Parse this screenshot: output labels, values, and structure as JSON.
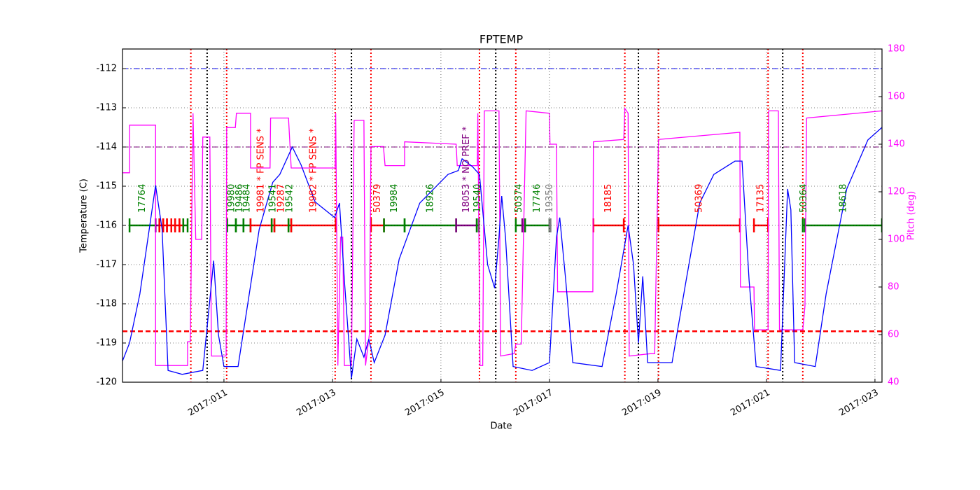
{
  "chart_data": {
    "type": "line",
    "title": "FPTEMP",
    "xlabel": "Date",
    "ylabel": "Temperature (C)",
    "y2label": "Pitch (deg)",
    "y2_color": "#ff00ff",
    "grid": true,
    "xlim": [
      9.13,
      23.13
    ],
    "xticks": [
      {
        "value": 11,
        "label": "2017:011"
      },
      {
        "value": 13,
        "label": "2017:013"
      },
      {
        "value": 15,
        "label": "2017:015"
      },
      {
        "value": 17,
        "label": "2017:017"
      },
      {
        "value": 19,
        "label": "2017:019"
      },
      {
        "value": 21,
        "label": "2017:021"
      },
      {
        "value": 23,
        "label": "2017:023"
      }
    ],
    "ylim": [
      -120,
      -111.5
    ],
    "yticks": [
      -120,
      -119,
      -118,
      -117,
      -116,
      -115,
      -114,
      -113,
      -112
    ],
    "y2lim": [
      40,
      180
    ],
    "y2ticks": [
      40,
      60,
      80,
      100,
      120,
      140,
      160,
      180
    ],
    "series": [
      {
        "color": "#0000ff",
        "x": [
          9.13,
          9.26,
          9.45,
          9.74,
          9.86,
          9.97,
          10.23,
          10.61,
          10.74,
          10.81,
          10.9,
          11.0,
          11.26,
          11.45,
          11.65,
          11.9,
          12.03,
          12.26,
          12.42,
          12.68,
          13.04,
          13.13,
          13.22,
          13.35,
          13.45,
          13.58,
          13.67,
          13.77,
          13.97,
          14.23,
          14.61,
          15.13,
          15.32,
          15.39,
          15.58,
          15.71,
          15.86,
          15.99,
          16.07,
          16.12,
          16.19,
          16.33,
          16.68,
          17.0,
          17.13,
          17.19,
          17.3,
          17.43,
          17.97,
          18.23,
          18.45,
          18.55,
          18.64,
          18.72,
          18.81,
          19.26,
          19.52,
          19.77,
          20.03,
          20.42,
          20.55,
          20.68,
          20.81,
          21.26,
          21.39,
          21.45,
          21.52,
          21.9,
          22.1,
          22.48,
          22.87,
          23.13
        ],
        "values": [
          -119.46,
          -119.0,
          -117.75,
          -114.98,
          -116.1,
          -119.7,
          -119.8,
          -119.7,
          -117.9,
          -116.9,
          -118.8,
          -119.6,
          -119.6,
          -117.9,
          -116.1,
          -114.9,
          -114.7,
          -114.0,
          -114.45,
          -115.4,
          -115.8,
          -115.43,
          -117.4,
          -119.9,
          -118.9,
          -119.36,
          -118.9,
          -119.5,
          -118.8,
          -116.86,
          -115.43,
          -114.7,
          -114.6,
          -114.3,
          -114.5,
          -114.7,
          -117.0,
          -117.6,
          -116.3,
          -115.25,
          -116.3,
          -119.6,
          -119.7,
          -119.5,
          -116.3,
          -115.8,
          -117.4,
          -119.5,
          -119.6,
          -117.75,
          -116.0,
          -117.0,
          -119.0,
          -117.3,
          -119.5,
          -119.5,
          -117.4,
          -115.43,
          -114.7,
          -114.36,
          -114.36,
          -117.4,
          -119.6,
          -119.7,
          -115.07,
          -115.6,
          -119.5,
          -119.6,
          -117.75,
          -115.07,
          -113.82,
          -113.5
        ]
      },
      {
        "color": "#ff00ff",
        "axis": "y2",
        "x": [
          9.13,
          9.26,
          9.26,
          9.74,
          9.74,
          10.33,
          10.33,
          10.38,
          10.43,
          10.48,
          10.59,
          10.61,
          10.74,
          10.77,
          11.04,
          11.05,
          11.21,
          11.23,
          11.49,
          11.49,
          11.85,
          11.86,
          12.19,
          12.24,
          13.05,
          13.06,
          13.1,
          13.15,
          13.19,
          13.22,
          13.35,
          13.4,
          13.58,
          13.61,
          13.68,
          13.71,
          13.94,
          13.97,
          14.33,
          14.33,
          15.28,
          15.3,
          15.67,
          15.68,
          15.72,
          15.77,
          15.8,
          16.07,
          16.1,
          16.35,
          16.38,
          16.48,
          16.57,
          17.0,
          17.01,
          17.13,
          17.15,
          17.8,
          17.81,
          18.37,
          18.39,
          18.45,
          18.47,
          18.87,
          18.94,
          19.01,
          20.51,
          20.52,
          20.77,
          20.78,
          21.03,
          21.04,
          21.22,
          21.24,
          21.67,
          21.71,
          21.74,
          23.13
        ],
        "values": [
          128,
          128,
          148,
          148,
          47,
          47,
          57,
          57,
          153,
          100,
          100,
          143,
          143,
          51,
          51,
          147,
          147,
          153,
          153,
          130,
          130,
          151,
          151,
          130,
          130,
          153,
          47,
          101,
          101,
          47,
          47,
          150,
          150,
          47,
          60,
          139,
          139,
          131,
          131,
          141,
          140,
          131,
          131,
          153,
          47,
          47,
          154,
          154,
          51,
          52,
          56,
          56,
          154,
          153,
          140,
          140,
          78,
          78,
          141,
          142,
          155,
          153,
          51,
          52,
          52,
          142,
          145,
          80,
          80,
          62,
          62,
          154,
          154,
          62,
          62,
          72,
          151,
          154
        ]
      }
    ],
    "hlines": [
      {
        "value": -112,
        "color": "#0000ff",
        "style": "dashdot"
      },
      {
        "value": -114,
        "color": "#800080",
        "style": "dashdot"
      },
      {
        "value": -118.7,
        "color": "#ff0000",
        "style": "dashed"
      }
    ],
    "vlines": [
      {
        "x": 10.39,
        "color": "#ff0000"
      },
      {
        "x": 11.05,
        "color": "#ff0000"
      },
      {
        "x": 13.05,
        "color": "#ff0000"
      },
      {
        "x": 13.71,
        "color": "#ff0000"
      },
      {
        "x": 15.71,
        "color": "#ff0000"
      },
      {
        "x": 16.38,
        "color": "#ff0000"
      },
      {
        "x": 18.39,
        "color": "#ff0000"
      },
      {
        "x": 19.01,
        "color": "#ff0000"
      },
      {
        "x": 21.03,
        "color": "#ff0000"
      },
      {
        "x": 21.67,
        "color": "#ff0000"
      },
      {
        "x": 10.69,
        "color": "#000000"
      },
      {
        "x": 13.35,
        "color": "#000000"
      },
      {
        "x": 16.01,
        "color": "#000000"
      },
      {
        "x": 18.64,
        "color": "#000000"
      },
      {
        "x": 21.3,
        "color": "#000000"
      }
    ],
    "observations": {
      "level": -116,
      "segments": [
        {
          "start": 9.26,
          "end": 9.74,
          "color": "#008000",
          "label": "17764"
        },
        {
          "start": 9.74,
          "end": 9.81,
          "color": "#800080",
          "label": null
        },
        {
          "start": 9.81,
          "end": 9.88,
          "color": "#ff0000",
          "label": null
        },
        {
          "start": 9.88,
          "end": 9.95,
          "color": "#ff0000",
          "label": null
        },
        {
          "start": 9.95,
          "end": 10.03,
          "color": "#ff0000",
          "label": null
        },
        {
          "start": 10.03,
          "end": 10.1,
          "color": "#ff0000",
          "label": null
        },
        {
          "start": 10.1,
          "end": 10.18,
          "color": "#ff0000",
          "label": null
        },
        {
          "start": 10.18,
          "end": 10.25,
          "color": "#ff0000",
          "label": null
        },
        {
          "start": 10.25,
          "end": 10.33,
          "color": "#008000",
          "label": null
        },
        {
          "start": 11.06,
          "end": 11.22,
          "color": "#008000",
          "label": "19980"
        },
        {
          "start": 11.22,
          "end": 11.36,
          "color": "#008000",
          "label": "19486"
        },
        {
          "start": 11.36,
          "end": 11.49,
          "color": "#008000",
          "label": "19484"
        },
        {
          "start": 11.49,
          "end": 11.88,
          "color": "#ff0000",
          "label": "19981 * FP SENS *"
        },
        {
          "start": 11.88,
          "end": 11.93,
          "color": "#008000",
          "label": "19541"
        },
        {
          "start": 11.93,
          "end": 12.19,
          "color": "#ff0000",
          "label": "19287"
        },
        {
          "start": 12.19,
          "end": 12.24,
          "color": "#008000",
          "label": "19542"
        },
        {
          "start": 12.24,
          "end": 13.06,
          "color": "#ff0000",
          "label": "19982 * FP SENS *"
        },
        {
          "start": 13.71,
          "end": 13.95,
          "color": "#ff0000",
          "label": "50379"
        },
        {
          "start": 13.95,
          "end": 14.33,
          "color": "#008000",
          "label": "19984"
        },
        {
          "start": 14.33,
          "end": 15.28,
          "color": "#008000",
          "label": "18926"
        },
        {
          "start": 15.28,
          "end": 15.66,
          "color": "#800080",
          "label": "18053 * NO PREF *"
        },
        {
          "start": 15.66,
          "end": 15.7,
          "color": "#008000",
          "label": "19540"
        },
        {
          "start": 16.38,
          "end": 16.5,
          "color": "#008000",
          "label": "50374"
        },
        {
          "start": 16.5,
          "end": 16.55,
          "color": "#800080",
          "label": null
        },
        {
          "start": 16.55,
          "end": 17.0,
          "color": "#008000",
          "label": "17746"
        },
        {
          "start": 17.0,
          "end": 17.02,
          "color": "#7f7f7f",
          "label": "19350"
        },
        {
          "start": 17.81,
          "end": 18.37,
          "color": "#ff0000",
          "label": "18185"
        },
        {
          "start": 19.01,
          "end": 20.51,
          "color": "#ff0000",
          "label": "50369"
        },
        {
          "start": 20.77,
          "end": 21.03,
          "color": "#ff0000",
          "label": "17135"
        },
        {
          "start": 21.67,
          "end": 21.71,
          "color": "#008000",
          "label": "50364"
        },
        {
          "start": 21.71,
          "end": 23.13,
          "color": "#008000",
          "label": "18618"
        }
      ]
    }
  }
}
